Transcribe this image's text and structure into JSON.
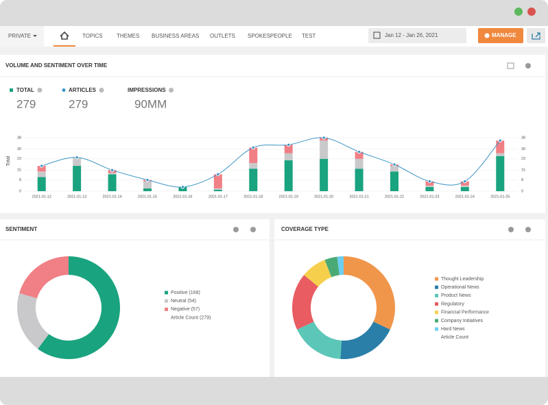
{
  "nav": {
    "private": "PRIVATE",
    "tabs": [
      "TOPICS",
      "THEMES",
      "BUSINESS AREAS",
      "OUTLETS",
      "SPOKESPEOPLE",
      "TEST"
    ],
    "date_range": "Jan 12 - Jan 26, 2021",
    "manage": "MANAGE"
  },
  "kpis": [
    {
      "label": "TOTAL",
      "value": 279
    },
    {
      "label": "ARTICLES",
      "value": 279
    },
    {
      "label": "IMPRESSIONS",
      "value": "90MM"
    }
  ],
  "chart_data": [
    {
      "type": "bar",
      "stacked": true,
      "title": "VOLUME AND SENTIMENT OVER TIME",
      "ylabel": "Total",
      "categories": [
        "2021-01-12",
        "2021-01-13",
        "2021-01-14",
        "2021-01-15",
        "2021-01-16",
        "2021-01-17",
        "2021-01-18",
        "2021-01-19",
        "2021-01-20",
        "2021-01-21",
        "2021-01-22",
        "2021-01-23",
        "2021-01-24",
        "2021-01-25"
      ],
      "series": [
        {
          "color": "#1aa37f",
          "values": [
            10,
            18,
            12,
            2,
            3,
            1,
            16,
            22,
            23,
            16,
            14,
            3,
            3,
            25
          ]
        },
        {
          "color": "#c9c9cb",
          "values": [
            4,
            6,
            1,
            5,
            0,
            1,
            4,
            5,
            13,
            7,
            4,
            1,
            1,
            2
          ]
        },
        {
          "color": "#f07f86",
          "values": [
            4,
            0,
            2,
            1,
            0,
            10,
            11,
            6,
            2,
            5,
            1,
            3,
            3,
            9
          ]
        },
        {
          "type": "line",
          "axis": "y2",
          "color": "#3b93c4",
          "values": [
            18,
            24,
            15,
            8,
            3,
            12,
            31,
            33,
            38,
            28,
            19,
            7,
            7,
            36
          ]
        }
      ],
      "ylim": [
        0,
        38
      ],
      "yticks": [
        0,
        8,
        15,
        23,
        30,
        38
      ],
      "y2lim": [
        0,
        38
      ],
      "y2ticks": [
        0,
        8,
        15,
        23,
        30,
        38
      ],
      "grid": true
    },
    {
      "type": "pie",
      "donut": true,
      "title": "SENTIMENT",
      "values": [
        168,
        54,
        57
      ],
      "value_labels": [
        "Positive (168)",
        "Neutral (54)",
        "Negative (57)"
      ],
      "colors": [
        "#1aa37f",
        "#c9c9cb",
        "#f07f86"
      ],
      "total_label": "Article Count (279)"
    },
    {
      "type": "pie",
      "donut": true,
      "title": "COVERAGE TYPE",
      "categories": [
        "Thought Leadership",
        "Operational News",
        "Product News",
        "Regulatory",
        "Financial Performance",
        "Company Initiatives",
        "Hard News"
      ],
      "values": [
        32,
        19,
        17,
        18,
        8,
        4,
        2
      ],
      "colors": [
        "#f0964a",
        "#2a7fa8",
        "#5cc6b8",
        "#e85c62",
        "#f6d04d",
        "#4aaa76",
        "#6ccff0"
      ],
      "total_label": "Article Count"
    }
  ]
}
